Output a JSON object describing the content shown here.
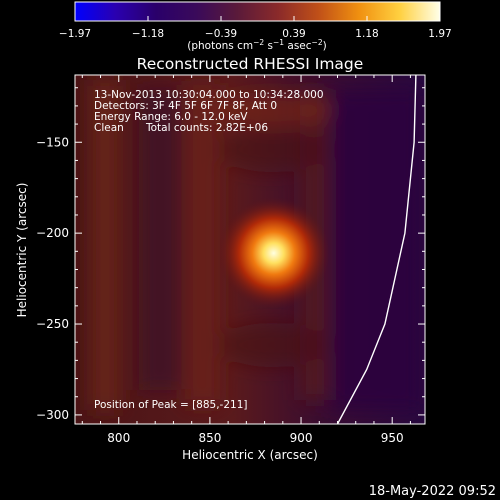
{
  "colorbar": {
    "tick_labels": [
      "−1.97",
      "−1.18",
      "−0.39",
      "0.39",
      "1.18",
      "1.97"
    ],
    "min": -1.97,
    "max": 1.97,
    "unit_label_main": "(photons cm",
    "unit_label_exp1": "−2",
    "unit_label_mid1": " s",
    "unit_label_exp2": "−1",
    "unit_label_mid2": " asec",
    "unit_label_exp3": "−2",
    "unit_label_end": ")"
  },
  "annotations": {
    "time_range": "13-Nov-2013 10:30:04.000 to 10:34:28.000",
    "detectors": "Detectors: 3F 4F 5F 6F 7F 8F, Att 0",
    "energy_range": "Energy Range: 6.0 - 12.0 keV",
    "clean_prefix": "Clean",
    "total_counts": "Total counts: 2.82E+06",
    "peak_position": "Position of Peak = [885,-211]"
  },
  "footer": {
    "timestamp": "18-May-2022 09:52"
  },
  "colors": {
    "background": "#000000",
    "text": "#ffffff",
    "colormap": [
      "#0000ff",
      "#2a00b0",
      "#2a006a",
      "#3a0a5a",
      "#5a1a3a",
      "#8a2a2a",
      "#c05018",
      "#f09010",
      "#ffd040",
      "#ffffe8"
    ]
  },
  "chart_data": {
    "type": "heatmap",
    "title": "Reconstructed RHESSI Image",
    "xlabel": "Heliocentric X (arcsec)",
    "ylabel": "Heliocentric Y (arcsec)",
    "xlim": [
      776,
      968
    ],
    "ylim": [
      -305,
      -113
    ],
    "x_ticks": [
      800,
      850,
      900,
      950
    ],
    "y_ticks": [
      -150,
      -200,
      -250,
      -300
    ],
    "x_tick_labels": [
      "800",
      "850",
      "900",
      "950"
    ],
    "y_tick_labels": [
      "−150",
      "−200",
      "−250",
      "−300"
    ],
    "peak": {
      "x": 885,
      "y": -211,
      "value": 1.97
    },
    "grid": false,
    "limb_curve": [
      {
        "x": 963,
        "y": -113
      },
      {
        "x": 962,
        "y": -150
      },
      {
        "x": 957,
        "y": -200
      },
      {
        "x": 946,
        "y": -250
      },
      {
        "x": 936,
        "y": -275
      },
      {
        "x": 920,
        "y": -305
      }
    ]
  }
}
